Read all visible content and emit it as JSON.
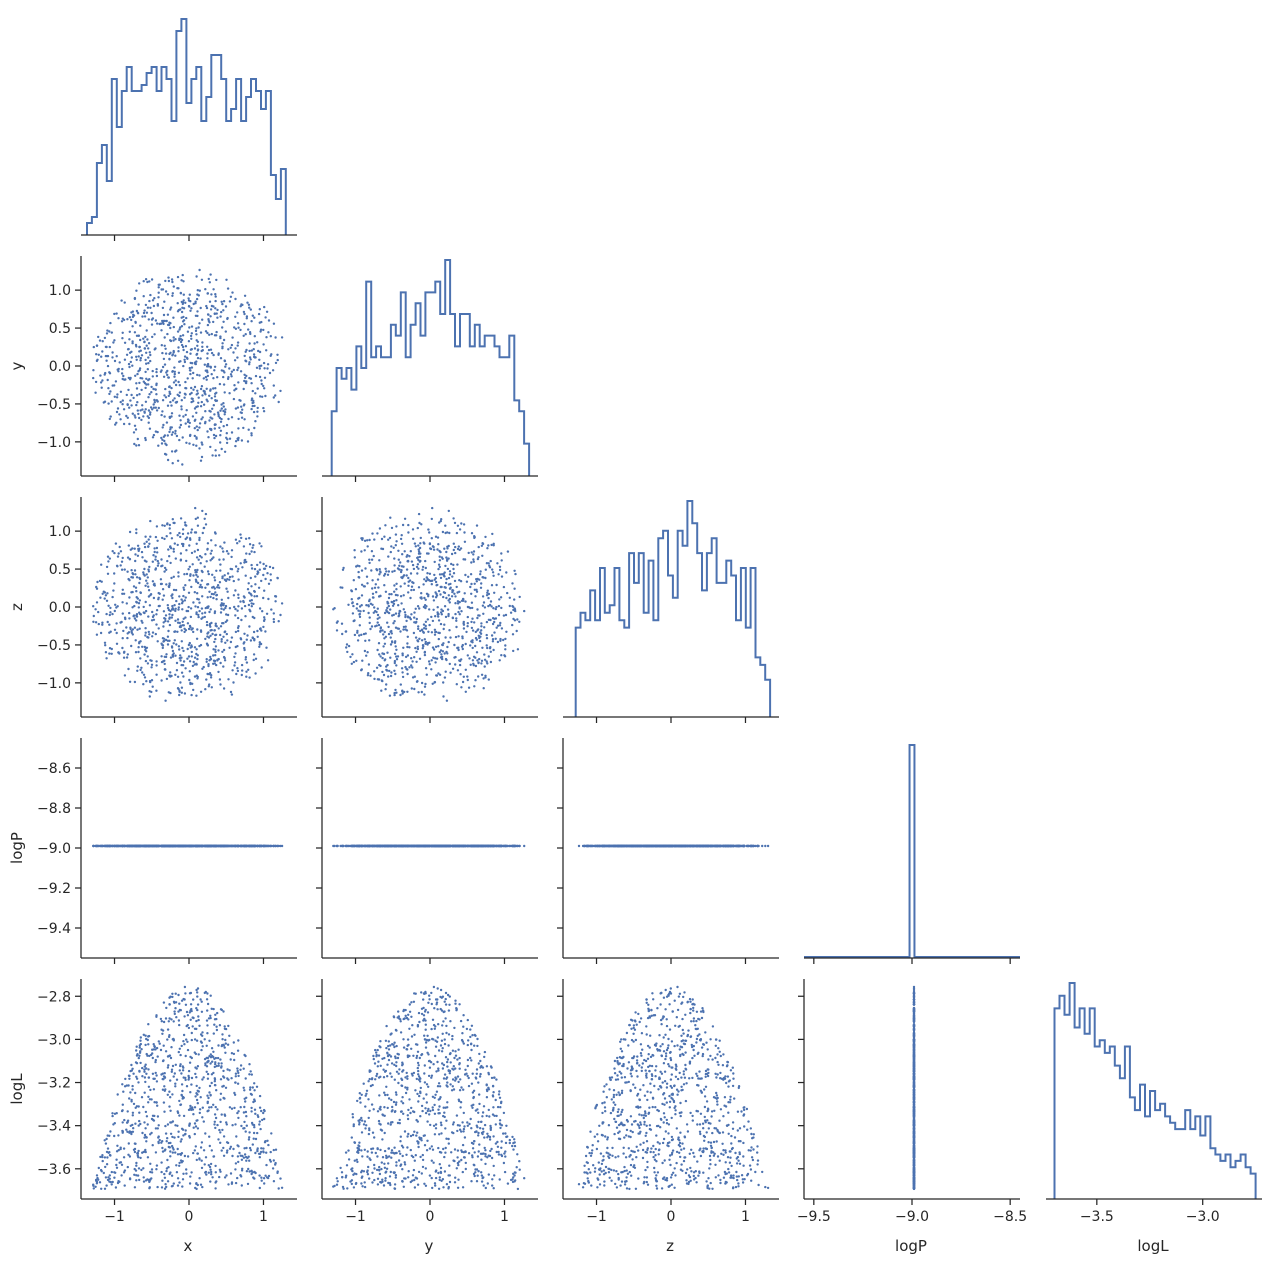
{
  "chart_data": {
    "type": "pairplot-corner",
    "variables": [
      "x",
      "y",
      "z",
      "logP",
      "logL"
    ],
    "axis_labels": {
      "bottom": [
        "x",
        "y",
        "z",
        "logP",
        "logL"
      ],
      "left": [
        "",
        "y",
        "z",
        "logP",
        "logL"
      ]
    },
    "colors": {
      "marks": "#4c72b0",
      "axis": "#262626"
    },
    "ranges": {
      "x": [
        -1.45,
        1.45
      ],
      "y": [
        -1.45,
        1.45
      ],
      "z": [
        -1.45,
        1.45
      ],
      "logP": [
        -9.55,
        -8.45
      ],
      "logL": [
        -3.74,
        -2.72
      ]
    },
    "ticks": {
      "x": [
        -1,
        0,
        1
      ],
      "y_left": [
        -1.0,
        -0.5,
        0.0,
        0.5,
        1.0
      ],
      "y_bottom": [
        -1,
        0,
        1
      ],
      "z_left": [
        -1.0,
        -0.5,
        0.0,
        0.5,
        1.0
      ],
      "z_bottom": [
        -1,
        0,
        1
      ],
      "logP_left": [
        -9.4,
        -9.2,
        -9.0,
        -8.8,
        -8.6
      ],
      "logP_bottom": [
        -9.5,
        -9.0,
        -8.5
      ],
      "logL_left": [
        -3.6,
        -3.4,
        -3.2,
        -3.0,
        -2.8
      ],
      "logL_bottom": [
        -3.5,
        -3.0
      ]
    },
    "tick_labels": {
      "x": [
        "−1",
        "0",
        "1"
      ],
      "y_left": [
        "−1.0",
        "−0.5",
        "0.0",
        "0.5",
        "1.0"
      ],
      "y_bottom": [
        "−1",
        "0",
        "1"
      ],
      "z_left": [
        "−1.0",
        "−0.5",
        "0.0",
        "0.5",
        "1.0"
      ],
      "z_bottom": [
        "−1",
        "0",
        "1"
      ],
      "logP_left": [
        "−9.4",
        "−9.2",
        "−9.0",
        "−8.8",
        "−8.6"
      ],
      "logP_bottom": [
        "−9.5",
        "−9.0",
        "−8.5"
      ],
      "logL_left": [
        "−3.6",
        "−3.4",
        "−3.2",
        "−3.0",
        "−2.8"
      ],
      "logL_bottom": [
        "−3.5",
        "−3.0"
      ]
    },
    "histograms": {
      "x": {
        "range": [
          -1.37,
          1.3
        ],
        "counts": [
          2,
          3,
          12,
          15,
          9,
          26,
          18,
          24,
          28,
          24,
          24,
          25,
          27,
          28,
          24,
          28,
          26,
          19,
          34,
          36,
          22,
          26,
          28,
          19,
          23,
          30,
          30,
          26,
          19,
          21,
          26,
          19,
          23,
          26,
          24,
          21,
          24,
          10,
          6,
          11
        ]
      },
      "y": {
        "range": [
          -1.32,
          1.33
        ],
        "counts": [
          6,
          10,
          9,
          10,
          8,
          12,
          10,
          18,
          11,
          12,
          11,
          11,
          14,
          13,
          17,
          11,
          14,
          16,
          13,
          17,
          17,
          18,
          15,
          20,
          15,
          12,
          15,
          15,
          12,
          14,
          12,
          13,
          13,
          12,
          11,
          11,
          13,
          7,
          6,
          3
        ]
      },
      "z": {
        "range": [
          -1.28,
          1.33
        ],
        "counts": [
          12,
          14,
          13,
          17,
          13,
          20,
          14,
          15,
          20,
          13,
          12,
          22,
          18,
          22,
          14,
          21,
          13,
          24,
          25,
          19,
          16,
          25,
          23,
          29,
          26,
          22,
          17,
          22,
          24,
          18,
          18,
          21,
          19,
          13,
          20,
          12,
          20,
          8,
          7,
          5
        ]
      },
      "logP": {
        "range": [
          -9.55,
          -8.45
        ],
        "peak_at": -9.0,
        "peak_width": 0.025
      },
      "logL": {
        "range": [
          -3.7,
          -2.75
        ],
        "counts": [
          30,
          32,
          29,
          34,
          27,
          30,
          26,
          30,
          24,
          25,
          23,
          24,
          21,
          19,
          24,
          16,
          14,
          18,
          13,
          17,
          14,
          15,
          13,
          12,
          11,
          11,
          14,
          11,
          13,
          10,
          13,
          8,
          7,
          6,
          7,
          5,
          6,
          7,
          5,
          4
        ]
      }
    },
    "scatter_note": "scatter panels show ~1000 samples uniformly filling a ball of radius ~1.3 in x,y,z; logP is constant at -9.0; logL = -2.75 - 0.55 r^2"
  }
}
